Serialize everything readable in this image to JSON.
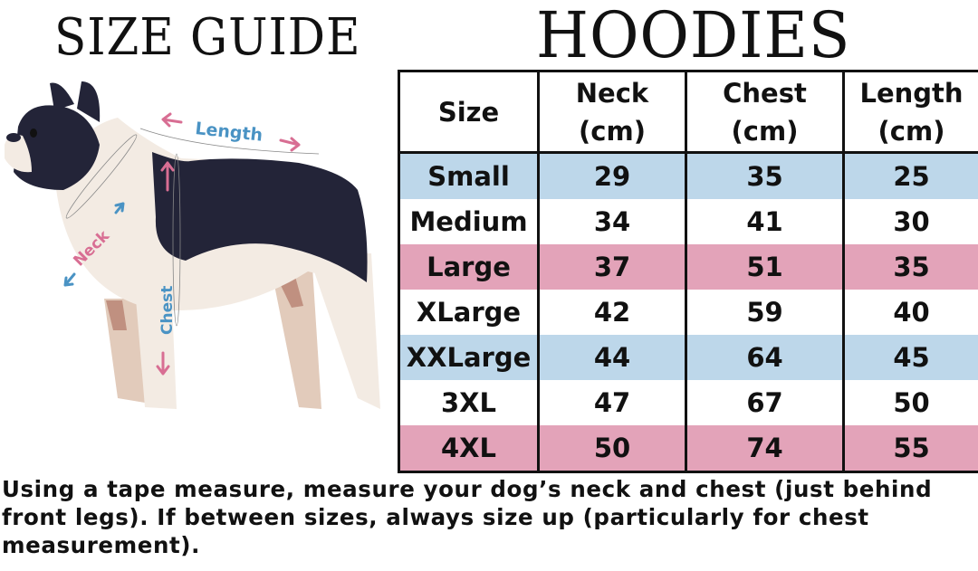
{
  "header": {
    "left_title": "SIZE GUIDE",
    "right_title": "HOODIES"
  },
  "diagram": {
    "labels": {
      "neck": "Neck",
      "chest": "Chest",
      "length": "Length"
    },
    "colors": {
      "pink": "#d86e93",
      "blue": "#4a93c4",
      "dog_dark": "#232438",
      "dog_light": "#f3ebe3"
    }
  },
  "table": {
    "headers": [
      [
        "Size",
        ""
      ],
      [
        "Neck",
        "(cm)"
      ],
      [
        "Chest",
        "(cm)"
      ],
      [
        "Length",
        "(cm)"
      ]
    ],
    "rows": [
      {
        "size": "Small",
        "neck": "29",
        "chest": "35",
        "length": "25",
        "color": "blue"
      },
      {
        "size": "Medium",
        "neck": "34",
        "chest": "41",
        "length": "30",
        "color": "white"
      },
      {
        "size": "Large",
        "neck": "37",
        "chest": "51",
        "length": "35",
        "color": "pink"
      },
      {
        "size": "XLarge",
        "neck": "42",
        "chest": "59",
        "length": "40",
        "color": "white"
      },
      {
        "size": "XXLarge",
        "neck": "44",
        "chest": "64",
        "length": "45",
        "color": "blue"
      },
      {
        "size": "3XL",
        "neck": "47",
        "chest": "67",
        "length": "50",
        "color": "white"
      },
      {
        "size": "4XL",
        "neck": "50",
        "chest": "74",
        "length": "55",
        "color": "pink"
      }
    ],
    "colors": {
      "blue": "#bdd7ea",
      "pink": "#e3a3b9"
    }
  },
  "note": "Using a tape measure, measure your dog’s neck and chest (just behind front legs). If between sizes, always size up (particularly for chest measurement)."
}
